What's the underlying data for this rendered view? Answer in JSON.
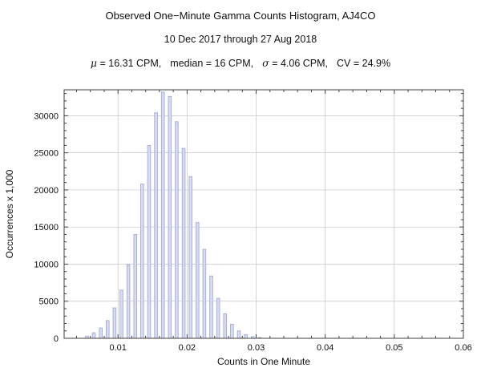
{
  "chart_data": {
    "type": "bar",
    "title": "Observed One−Minute Gamma Counts Histogram, AJ4CO",
    "subtitle": "10 Dec 2017 through 27 Aug 2018",
    "stats": {
      "mu_symbol": "μ",
      "mu_text": " = 16.31 CPM,",
      "median_text": "median = 16 CPM,",
      "sigma_symbol": "σ",
      "sigma_text": " = 4.06 CPM,",
      "cv_text": "CV = 24.9%"
    },
    "xlabel": "Counts in One Minute",
    "ylabel": "Occurrences x 1,000",
    "bins": [
      0.005,
      0.006,
      0.007,
      0.008,
      0.009,
      0.01,
      0.011,
      0.012,
      0.013,
      0.014,
      0.015,
      0.016,
      0.017,
      0.018,
      0.019,
      0.02,
      0.021,
      0.022,
      0.023,
      0.024,
      0.025,
      0.026,
      0.027,
      0.028,
      0.029,
      0.03
    ],
    "bin_width": 0.001,
    "values": [
      300,
      750,
      1400,
      2400,
      4100,
      6500,
      9900,
      14000,
      20800,
      26000,
      30400,
      33200,
      32600,
      29200,
      25600,
      21800,
      15600,
      12000,
      8400,
      5400,
      3300,
      1900,
      1000,
      500,
      230,
      100
    ],
    "xlim": [
      0.0022,
      0.06
    ],
    "ylim": [
      0,
      33500
    ],
    "x_ticks": [
      0.01,
      0.02,
      0.03,
      0.04,
      0.05,
      0.06
    ],
    "x_tick_labels": [
      "0.01",
      "0.02",
      "0.03",
      "0.04",
      "0.05",
      "0.06"
    ],
    "y_ticks": [
      0,
      5000,
      10000,
      15000,
      20000,
      25000,
      30000
    ],
    "y_tick_labels": [
      "0",
      "5000",
      "10000",
      "15000",
      "20000",
      "25000",
      "30000"
    ],
    "x_minor_step": 0.002,
    "y_minor_step": 1000,
    "grid": true,
    "legend": "none",
    "colors": {
      "bar_fill": "#d8dcf1",
      "bar_edge": "#a2abd8",
      "grid": "#c4c4c4",
      "frame": "#3f3f3f",
      "text": "#111111"
    }
  }
}
